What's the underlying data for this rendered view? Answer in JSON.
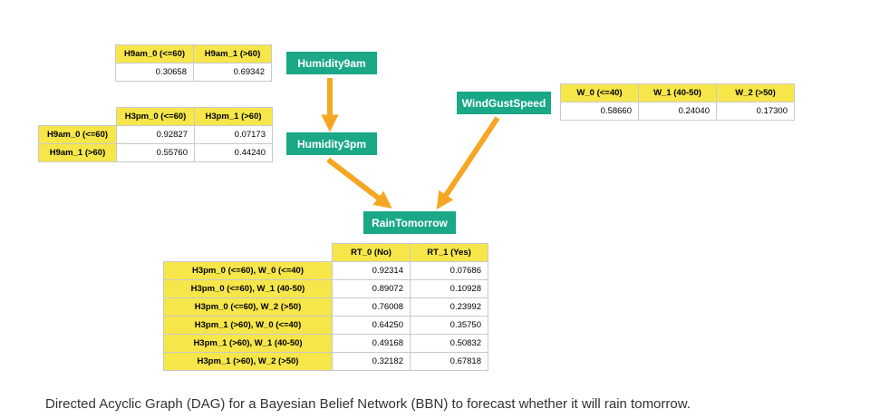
{
  "nodes": {
    "humidity9am": "Humidity9am",
    "humidity3pm": "Humidity3pm",
    "windgustspeed": "WindGustSpeed",
    "raintomorrow": "RainTomorrow"
  },
  "cpt_h9am": {
    "headers": [
      "H9am_0 (<=60)",
      "H9am_1 (>60)"
    ],
    "values": [
      "0.30658",
      "0.69342"
    ]
  },
  "cpt_h3pm": {
    "headers": [
      "H3pm_0 (<=60)",
      "H3pm_1 (>60)"
    ],
    "rows": [
      {
        "label": "H9am_0 (<=60)",
        "values": [
          "0.92827",
          "0.07173"
        ]
      },
      {
        "label": "H9am_1 (>60)",
        "values": [
          "0.55760",
          "0.44240"
        ]
      }
    ]
  },
  "cpt_wind": {
    "headers": [
      "W_0 (<=40)",
      "W_1 (40-50)",
      "W_2 (>50)"
    ],
    "values": [
      "0.58660",
      "0.24040",
      "0.17300"
    ]
  },
  "cpt_rain": {
    "headers": [
      "RT_0 (No)",
      "RT_1 (Yes)"
    ],
    "rows": [
      {
        "label": "H3pm_0 (<=60), W_0 (<=40)",
        "values": [
          "0.92314",
          "0.07686"
        ]
      },
      {
        "label": "H3pm_0 (<=60), W_1 (40-50)",
        "values": [
          "0.89072",
          "0.10928"
        ]
      },
      {
        "label": "H3pm_0 (<=60), W_2 (>50)",
        "values": [
          "0.76008",
          "0.23992"
        ]
      },
      {
        "label": "H3pm_1 (>60), W_0 (<=40)",
        "values": [
          "0.64250",
          "0.35750"
        ]
      },
      {
        "label": "H3pm_1 (>60), W_1 (40-50)",
        "values": [
          "0.49168",
          "0.50832"
        ]
      },
      {
        "label": "H3pm_1 (>60), W_2 (>50)",
        "values": [
          "0.32182",
          "0.67818"
        ]
      }
    ]
  },
  "caption": "Directed Acyclic Graph (DAG) for a Bayesian Belief Network (BBN) to forecast whether it will rain tomorrow.",
  "colors": {
    "node": "#1aa887",
    "arrow": "#f5a623",
    "table_header": "#f6e64a"
  }
}
